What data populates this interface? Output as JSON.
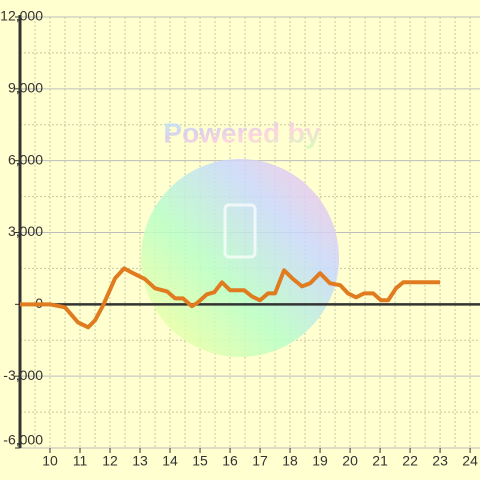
{
  "chart_data": {
    "type": "line",
    "watermark": "Powered by",
    "x": [
      9,
      10,
      10.5,
      10.93,
      11.27,
      11.5,
      11.77,
      12.17,
      12.47,
      12.77,
      13.17,
      13.5,
      13.9,
      14.17,
      14.43,
      14.73,
      14.93,
      15.23,
      15.47,
      15.73,
      16,
      16.47,
      16.73,
      17,
      17.27,
      17.5,
      17.8,
      18.07,
      18.4,
      18.67,
      19,
      19.33,
      19.67,
      19.93,
      20.2,
      20.47,
      20.77,
      21.03,
      21.27,
      21.53,
      21.77,
      23
    ],
    "series": [
      {
        "color": "#e07b20",
        "values": [
          0,
          0,
          -125,
          -750,
          -960,
          -670,
          -40,
          1090,
          1500,
          1300,
          1050,
          670,
          540,
          250,
          250,
          -80,
          80,
          420,
          500,
          920,
          590,
          590,
          330,
          170,
          460,
          460,
          1420,
          1090,
          750,
          880,
          1300,
          880,
          800,
          460,
          290,
          460,
          460,
          170,
          170,
          670,
          920,
          920
        ]
      }
    ],
    "xlim": [
      9,
      24.33
    ],
    "ylim": [
      -6000,
      12000
    ],
    "xticks": [
      10,
      11,
      12,
      13,
      14,
      15,
      16,
      17,
      18,
      19,
      20,
      21,
      22,
      23,
      24
    ],
    "yticks": [
      {
        "value": -6000,
        "label": "-6,000"
      },
      {
        "value": -3000,
        "label": "-3,000"
      },
      0,
      {
        "value": 3000,
        "label": "3,000"
      },
      {
        "value": 6000,
        "label": "6,000"
      },
      {
        "value": 9000,
        "label": "9,000"
      },
      {
        "value": 12000,
        "label": "12,000"
      }
    ],
    "xminorticks": [
      9.5,
      10.5,
      11.5,
      12.5,
      13.5,
      14.5,
      15.5,
      16.5,
      17.5,
      18.5,
      19.5,
      20.5,
      21.5,
      22.5,
      23.5
    ],
    "yminorticks": [
      -4500,
      -1500,
      1500,
      4500,
      7500,
      10500
    ],
    "grid": true
  }
}
